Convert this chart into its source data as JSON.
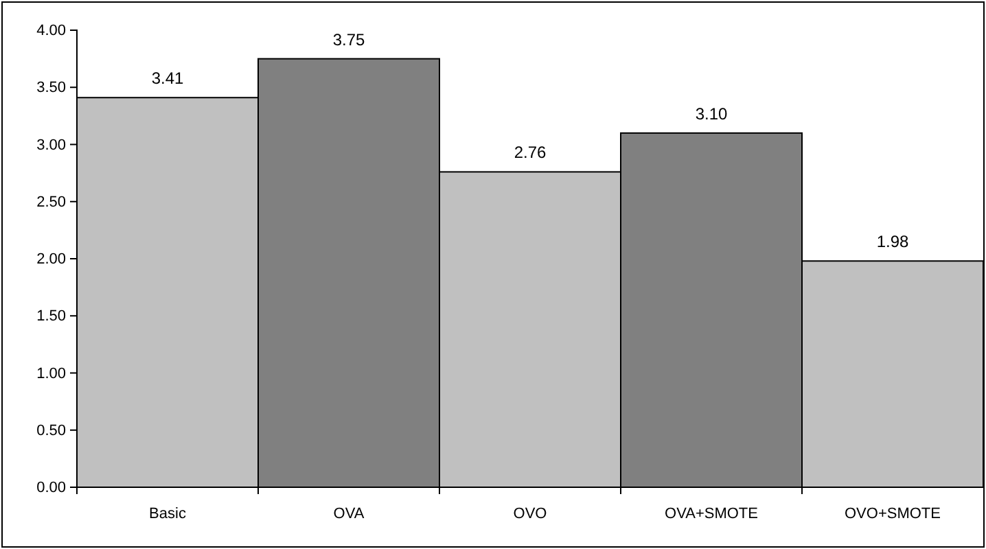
{
  "chart_data": {
    "type": "bar",
    "categories": [
      "Basic",
      "OVA",
      "OVO",
      "OVA+SMOTE",
      "OVO+SMOTE"
    ],
    "values": [
      3.41,
      3.75,
      2.76,
      3.1,
      1.98
    ],
    "colors": [
      "#c0c0c0",
      "#808080",
      "#c0c0c0",
      "#808080",
      "#c0c0c0"
    ],
    "value_labels": [
      "3.41",
      "3.75",
      "2.76",
      "3.10",
      "1.98"
    ],
    "ylim": [
      0,
      4
    ],
    "yticks": [
      {
        "value": 0,
        "label": "0.00"
      },
      {
        "value": 0.5,
        "label": "0.50"
      },
      {
        "value": 1,
        "label": "1.00"
      },
      {
        "value": 1.5,
        "label": "1.50"
      },
      {
        "value": 2,
        "label": "2.00"
      },
      {
        "value": 2.5,
        "label": "2.50"
      },
      {
        "value": 3,
        "label": "3.00"
      },
      {
        "value": 3.5,
        "label": "3.50"
      },
      {
        "value": 4,
        "label": "4.00"
      }
    ],
    "grid": false
  }
}
